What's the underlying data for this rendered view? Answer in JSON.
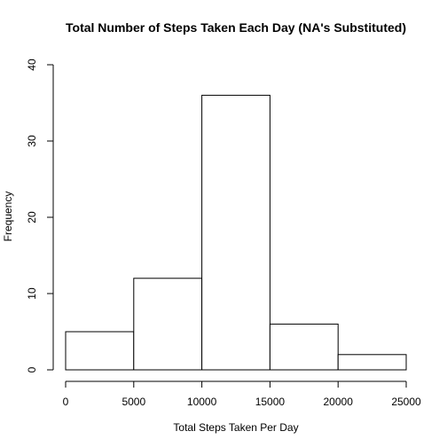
{
  "chart_data": {
    "type": "bar",
    "title": "Total Number of Steps Taken Each Day (NA's Substituted)",
    "xlabel": "Total Steps Taken Per Day",
    "ylabel": "Frequency",
    "bins": [
      {
        "from": 0,
        "to": 5000,
        "count": 5
      },
      {
        "from": 5000,
        "to": 10000,
        "count": 12
      },
      {
        "from": 10000,
        "to": 15000,
        "count": 36
      },
      {
        "from": 15000,
        "to": 20000,
        "count": 6
      },
      {
        "from": 20000,
        "to": 25000,
        "count": 2
      }
    ],
    "xlim": [
      0,
      25000
    ],
    "ylim": [
      0,
      40
    ],
    "x_ticks": [
      0,
      5000,
      10000,
      15000,
      20000,
      25000
    ],
    "y_ticks": [
      0,
      10,
      20,
      30,
      40
    ],
    "x_tick_labels": [
      "0",
      "5000",
      "10000",
      "15000",
      "20000",
      "25000"
    ],
    "y_tick_labels": [
      "0",
      "10",
      "20",
      "30",
      "40"
    ],
    "bar_fill": "#ffffff",
    "bar_stroke": "#000000",
    "grid": false,
    "legend": "none"
  }
}
